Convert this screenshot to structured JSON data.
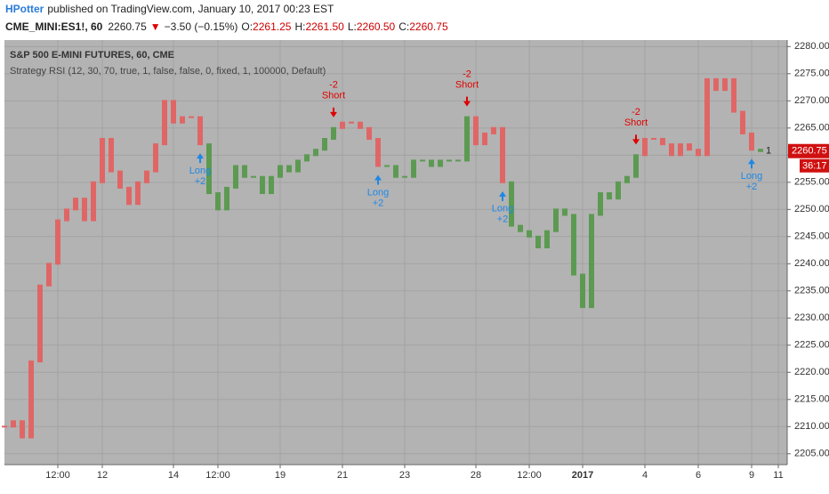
{
  "header": {
    "author": "HPotter",
    "published": "published on TradingView.com, January 10, 2017 00:23 EST"
  },
  "quote": {
    "symbol": "CME_MINI:ES1!, 60",
    "last": "2260.75",
    "change": "−3.50 (−0.15%)",
    "o_label": "O:",
    "o": "2261.25",
    "h_label": "H:",
    "h": "2261.50",
    "l_label": "L:",
    "l": "2260.50",
    "c_label": "C:",
    "c": "2260.75"
  },
  "chart_data": {
    "type": "bar",
    "title": "S&P 500 E-MINI FUTURES, 60, CME",
    "subtitle": "Strategy RSI (12, 30, 70, true, 1, false, false, 0, fixed, 1, 100000, Default)",
    "x": [
      0,
      1,
      2,
      3,
      4,
      5,
      6,
      7,
      8,
      9,
      10,
      11,
      12,
      13,
      14,
      15,
      16,
      17,
      18,
      19,
      20,
      21,
      22,
      23,
      24,
      25,
      26,
      27,
      28,
      29,
      30,
      31,
      32,
      33,
      34,
      35,
      36,
      37,
      38,
      39,
      40,
      41,
      42,
      43,
      44,
      45,
      46,
      47,
      48,
      49,
      50,
      51,
      52,
      53,
      54,
      55,
      56,
      57,
      58,
      59,
      60,
      61,
      62,
      63,
      64,
      65,
      66,
      67,
      68,
      69,
      70,
      71,
      72,
      73,
      74,
      75,
      76,
      77,
      78,
      79,
      80,
      81,
      82,
      83,
      84,
      85
    ],
    "values": [
      2210,
      2211,
      2208,
      2222,
      2236,
      2240,
      2248,
      2250,
      2252,
      2248,
      2255,
      2263,
      2257,
      2254,
      2251,
      2255,
      2257,
      2262,
      2270,
      2266,
      2267,
      2267,
      2262,
      2253,
      2250,
      2254,
      2258,
      2256,
      2256,
      2253,
      2256,
      2258,
      2257,
      2259,
      2260,
      2261,
      2263,
      2265,
      2266,
      2266,
      2265,
      2263,
      2258,
      2258,
      2256,
      2256,
      2259,
      2259,
      2258,
      2259,
      2259,
      2259,
      2267,
      2262,
      2264,
      2265,
      2255,
      2247,
      2246,
      2245,
      2243,
      2246,
      2250,
      2249,
      2238,
      2232,
      2249,
      2253,
      2252,
      2255,
      2256,
      2260,
      2263,
      2263,
      2262,
      2260,
      2262,
      2261,
      2260,
      2274,
      2272,
      2274,
      2268,
      2264,
      2261,
      2260.75
    ],
    "point_colors": [
      "#e06666",
      "#e06666",
      "#e06666",
      "#e06666",
      "#e06666",
      "#e06666",
      "#e06666",
      "#e06666",
      "#e06666",
      "#e06666",
      "#e06666",
      "#e06666",
      "#e06666",
      "#e06666",
      "#e06666",
      "#e06666",
      "#e06666",
      "#e06666",
      "#e06666",
      "#e06666",
      "#e06666",
      "#e06666",
      "#e06666",
      "#5c9a52",
      "#5c9a52",
      "#5c9a52",
      "#5c9a52",
      "#5c9a52",
      "#5c9a52",
      "#5c9a52",
      "#5c9a52",
      "#5c9a52",
      "#5c9a52",
      "#5c9a52",
      "#5c9a52",
      "#5c9a52",
      "#5c9a52",
      "#5c9a52",
      "#e06666",
      "#e06666",
      "#e06666",
      "#e06666",
      "#e06666",
      "#5c9a52",
      "#5c9a52",
      "#5c9a52",
      "#5c9a52",
      "#5c9a52",
      "#5c9a52",
      "#5c9a52",
      "#5c9a52",
      "#5c9a52",
      "#5c9a52",
      "#e06666",
      "#e06666",
      "#e06666",
      "#e06666",
      "#5c9a52",
      "#5c9a52",
      "#5c9a52",
      "#5c9a52",
      "#5c9a52",
      "#5c9a52",
      "#5c9a52",
      "#5c9a52",
      "#5c9a52",
      "#5c9a52",
      "#5c9a52",
      "#5c9a52",
      "#5c9a52",
      "#5c9a52",
      "#5c9a52",
      "#e06666",
      "#e06666",
      "#e06666",
      "#e06666",
      "#e06666",
      "#e06666",
      "#e06666",
      "#e06666",
      "#e06666",
      "#e06666",
      "#e06666",
      "#e06666",
      "#e06666",
      "#5c9a52"
    ],
    "signals": [
      {
        "side": "Long",
        "qty": "+2",
        "x": 22,
        "color": "#1e88e5"
      },
      {
        "side": "Short",
        "qty": "-2",
        "x": 37,
        "color": "#e00000"
      },
      {
        "side": "Long",
        "qty": "+2",
        "x": 42,
        "color": "#1e88e5"
      },
      {
        "side": "Short",
        "qty": "-2",
        "x": 52,
        "color": "#e00000"
      },
      {
        "side": "Long",
        "qty": "+2",
        "x": 56,
        "color": "#1e88e5"
      },
      {
        "side": "Short",
        "qty": "-2",
        "x": 71,
        "color": "#e00000"
      },
      {
        "side": "Long",
        "qty": "+2",
        "x": 84,
        "color": "#1e88e5"
      }
    ],
    "position_label": "1",
    "last_price_tag": "2260.75",
    "countdown": "36:17",
    "xlim": [
      0,
      88
    ],
    "xticks": [
      {
        "value": 6,
        "label": "12:00"
      },
      {
        "value": 11,
        "label": "12"
      },
      {
        "value": 19,
        "label": "14"
      },
      {
        "value": 24,
        "label": "12:00"
      },
      {
        "value": 31,
        "label": "19"
      },
      {
        "value": 38,
        "label": "21"
      },
      {
        "value": 45,
        "label": "23"
      },
      {
        "value": 53,
        "label": "28"
      },
      {
        "value": 59,
        "label": "12:00"
      },
      {
        "value": 65,
        "label": "2017"
      },
      {
        "value": 72,
        "label": "4"
      },
      {
        "value": 78,
        "label": "6"
      },
      {
        "value": 84,
        "label": "9"
      },
      {
        "value": 87,
        "label": "11"
      }
    ],
    "ylim": [
      2203,
      2281.2
    ],
    "yticks": [
      {
        "value": 2205,
        "label": "2205.00"
      },
      {
        "value": 2210,
        "label": "2210.00"
      },
      {
        "value": 2215,
        "label": "2215.00"
      },
      {
        "value": 2220,
        "label": "2220.00"
      },
      {
        "value": 2225,
        "label": "2225.00"
      },
      {
        "value": 2230,
        "label": "2230.00"
      },
      {
        "value": 2235,
        "label": "2235.00"
      },
      {
        "value": 2240,
        "label": "2240.00"
      },
      {
        "value": 2245,
        "label": "2245.00"
      },
      {
        "value": 2250,
        "label": "2250.00"
      },
      {
        "value": 2255,
        "label": "2255.00"
      },
      {
        "value": 2260,
        "label": "2260.00"
      },
      {
        "value": 2265,
        "label": "2265.00"
      },
      {
        "value": 2270,
        "label": "2270.00"
      },
      {
        "value": 2275,
        "label": "2275.00"
      },
      {
        "value": 2280,
        "label": "2280.00"
      }
    ],
    "grid": true
  }
}
